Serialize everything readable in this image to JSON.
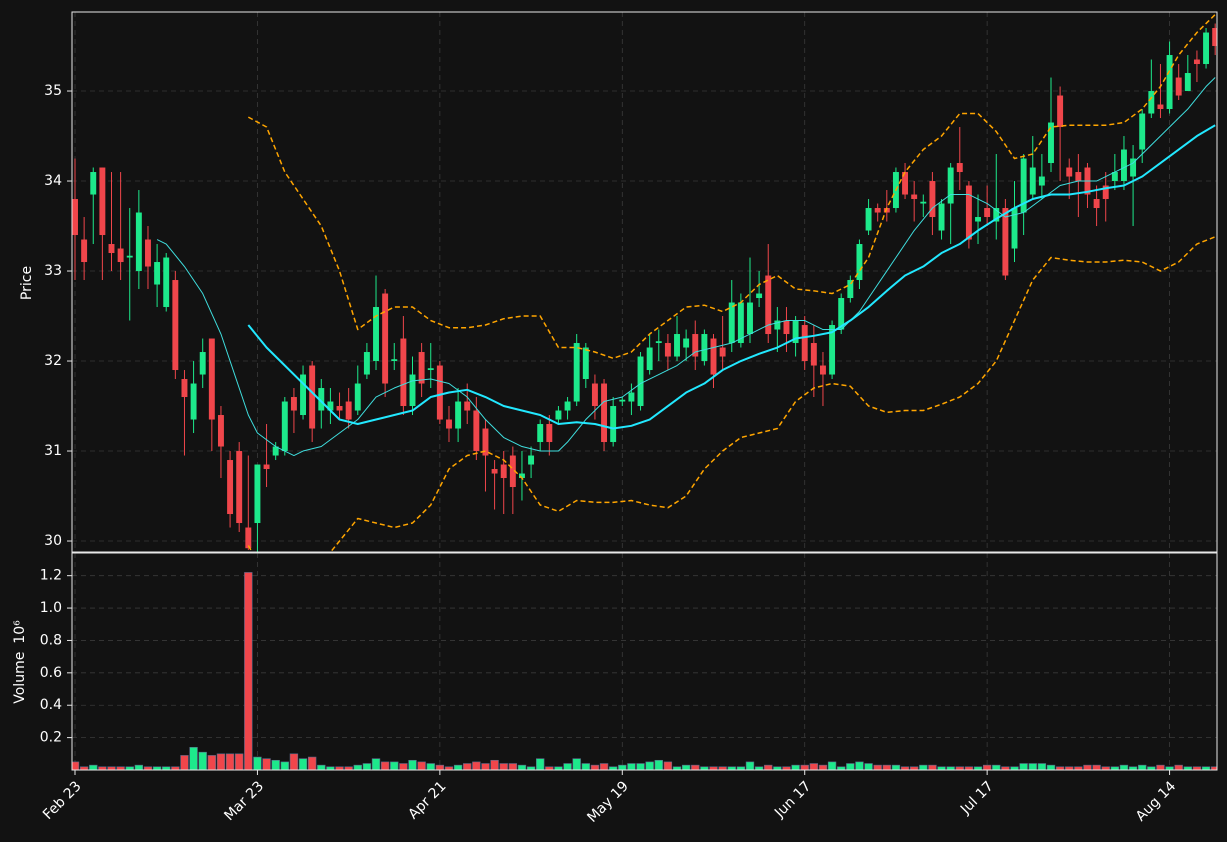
{
  "chart_data": {
    "type": "candlestick",
    "categories": [
      "Feb 23",
      null,
      null,
      null,
      null,
      null,
      null,
      null,
      null,
      null,
      null,
      null,
      null,
      null,
      null,
      null,
      null,
      null,
      null,
      null,
      "Mar 23",
      null,
      null,
      null,
      null,
      null,
      null,
      null,
      null,
      null,
      null,
      null,
      null,
      null,
      null,
      null,
      null,
      null,
      null,
      null,
      "Apr 21",
      null,
      null,
      null,
      null,
      null,
      null,
      null,
      null,
      null,
      null,
      null,
      null,
      null,
      null,
      null,
      null,
      null,
      null,
      null,
      "May 19",
      null,
      null,
      null,
      null,
      null,
      null,
      null,
      null,
      null,
      null,
      null,
      null,
      null,
      null,
      null,
      null,
      null,
      null,
      null,
      "Jun 17",
      null,
      null,
      null,
      null,
      null,
      null,
      null,
      null,
      null,
      null,
      null,
      null,
      null,
      null,
      null,
      null,
      null,
      null,
      null,
      "Jul 17",
      null,
      null,
      null,
      null,
      null,
      null,
      null,
      null,
      null,
      null,
      null,
      null,
      null,
      null,
      null,
      null,
      null,
      null,
      null,
      "Aug 14",
      null,
      null,
      null,
      null,
      null
    ],
    "xlim": [
      -0.33,
      125.2
    ],
    "open": [
      33.8,
      33.35,
      33.85,
      34.15,
      33.3,
      33.25,
      33.15,
      33.0,
      33.35,
      32.85,
      32.6,
      32.9,
      31.8,
      31.35,
      31.85,
      32.25,
      31.4,
      30.9,
      31.0,
      30.15,
      30.2,
      30.85,
      30.95,
      31.0,
      31.6,
      31.4,
      31.95,
      31.45,
      31.45,
      31.5,
      31.55,
      31.45,
      31.85,
      32.0,
      32.75,
      32.0,
      32.25,
      31.5,
      32.1,
      31.9,
      31.95,
      31.35,
      31.25,
      31.55,
      31.45,
      31.25,
      30.8,
      30.85,
      30.95,
      30.7,
      30.85,
      31.1,
      31.3,
      31.35,
      31.45,
      31.55,
      31.8,
      31.75,
      31.75,
      31.1,
      31.55,
      31.55,
      31.5,
      31.9,
      32.2,
      32.2,
      32.05,
      32.15,
      32.3,
      32.0,
      32.25,
      32.15,
      32.2,
      32.2,
      32.3,
      32.7,
      32.95,
      32.35,
      32.45,
      32.2,
      32.4,
      32.2,
      31.95,
      31.85,
      32.35,
      32.7,
      32.9,
      33.45,
      33.7,
      33.7,
      33.7,
      34.1,
      33.85,
      33.75,
      34.0,
      33.45,
      33.75,
      34.2,
      33.95,
      33.55,
      33.7,
      33.55,
      33.7,
      33.25,
      33.65,
      33.85,
      33.95,
      34.2,
      34.95,
      34.15,
      34.1,
      34.15,
      33.8,
      33.95,
      34.0,
      34.0,
      34.05,
      34.35,
      34.75,
      34.85,
      34.8,
      35.15,
      35.0,
      35.35,
      35.3,
      35.7
    ],
    "high": [
      34.25,
      33.6,
      34.15,
      34.15,
      34.1,
      34.1,
      33.7,
      33.9,
      33.5,
      33.3,
      33.2,
      33.0,
      31.9,
      32.0,
      32.25,
      32.25,
      31.5,
      31.0,
      31.1,
      30.95,
      30.85,
      31.3,
      31.1,
      31.6,
      31.7,
      31.95,
      32.0,
      31.8,
      31.7,
      31.65,
      31.7,
      31.95,
      32.2,
      32.95,
      32.8,
      32.2,
      32.5,
      32.05,
      32.2,
      32.2,
      32.0,
      31.5,
      31.7,
      31.75,
      31.6,
      31.35,
      30.9,
      31.0,
      31.05,
      31.0,
      31.05,
      31.35,
      31.4,
      31.5,
      31.6,
      32.3,
      32.2,
      31.85,
      31.8,
      31.6,
      31.6,
      31.75,
      32.1,
      32.3,
      32.35,
      32.3,
      32.5,
      32.35,
      32.45,
      32.35,
      32.3,
      32.5,
      32.9,
      32.75,
      33.15,
      33.0,
      33.3,
      32.6,
      32.6,
      32.5,
      32.5,
      32.4,
      32.1,
      32.45,
      32.75,
      32.95,
      33.35,
      33.8,
      33.75,
      33.9,
      34.15,
      34.2,
      34.0,
      33.85,
      34.1,
      33.8,
      34.2,
      34.6,
      34.0,
      33.85,
      33.95,
      34.3,
      33.8,
      34.0,
      34.3,
      34.5,
      34.3,
      35.15,
      35.05,
      34.25,
      34.3,
      34.2,
      33.95,
      34.1,
      34.3,
      34.5,
      34.4,
      34.8,
      35.35,
      35.3,
      35.55,
      35.3,
      35.4,
      35.45,
      35.7,
      35.75
    ],
    "low": [
      32.9,
      32.9,
      33.3,
      32.9,
      33.0,
      32.9,
      32.45,
      32.8,
      32.8,
      32.6,
      32.55,
      31.8,
      30.95,
      31.2,
      31.7,
      31.0,
      30.7,
      30.15,
      30.1,
      29.9,
      29.85,
      30.6,
      30.9,
      30.95,
      31.2,
      31.35,
      31.1,
      31.25,
      31.3,
      31.35,
      31.25,
      31.4,
      31.8,
      31.9,
      31.6,
      31.9,
      31.4,
      31.4,
      31.6,
      31.7,
      31.3,
      31.1,
      31.1,
      31.3,
      30.9,
      30.55,
      30.35,
      30.3,
      30.3,
      30.45,
      30.7,
      31.0,
      30.95,
      31.3,
      31.35,
      31.5,
      31.7,
      31.35,
      31.0,
      31.05,
      31.5,
      31.4,
      31.45,
      31.85,
      32.0,
      31.9,
      32.0,
      32.0,
      31.9,
      31.95,
      31.7,
      31.9,
      32.1,
      32.15,
      32.2,
      32.6,
      32.2,
      32.1,
      32.1,
      32.05,
      31.9,
      31.6,
      31.5,
      31.8,
      32.3,
      32.65,
      32.8,
      33.4,
      33.55,
      33.55,
      33.65,
      33.8,
      33.55,
      33.6,
      33.4,
      33.35,
      33.3,
      33.9,
      33.25,
      33.3,
      33.5,
      33.35,
      32.9,
      33.1,
      33.4,
      33.8,
      33.8,
      34.1,
      34.0,
      33.8,
      33.6,
      33.7,
      33.5,
      33.55,
      33.9,
      33.9,
      33.5,
      34.2,
      34.7,
      34.7,
      34.75,
      34.9,
      35.0,
      35.1,
      35.25,
      35.4
    ],
    "close": [
      33.4,
      33.1,
      34.1,
      33.4,
      33.2,
      33.1,
      33.17,
      33.65,
      33.05,
      33.1,
      33.15,
      31.9,
      31.6,
      31.75,
      32.1,
      31.35,
      31.05,
      30.3,
      30.2,
      29.92,
      30.85,
      30.8,
      31.05,
      31.55,
      31.45,
      31.85,
      31.25,
      31.7,
      31.55,
      31.45,
      31.35,
      31.75,
      32.1,
      32.6,
      31.75,
      32.02,
      31.5,
      31.85,
      31.75,
      31.92,
      31.35,
      31.25,
      31.55,
      31.45,
      31.0,
      30.95,
      30.75,
      30.7,
      30.6,
      30.75,
      30.95,
      31.3,
      31.1,
      31.45,
      31.55,
      32.2,
      32.15,
      31.5,
      31.1,
      31.5,
      31.57,
      31.65,
      32.05,
      32.15,
      32.22,
      32.05,
      32.3,
      32.25,
      32.05,
      32.3,
      31.85,
      32.05,
      32.65,
      32.65,
      32.65,
      32.75,
      32.3,
      32.45,
      32.3,
      32.45,
      32.0,
      31.95,
      31.85,
      32.4,
      32.7,
      32.9,
      33.3,
      33.7,
      33.65,
      33.65,
      34.1,
      33.85,
      33.8,
      33.77,
      33.6,
      33.75,
      34.15,
      34.1,
      33.35,
      33.6,
      33.6,
      33.7,
      32.95,
      33.7,
      34.25,
      34.15,
      34.05,
      34.65,
      34.6,
      34.05,
      34.0,
      33.85,
      33.7,
      33.8,
      34.1,
      34.35,
      34.25,
      34.75,
      35.0,
      34.8,
      35.4,
      34.95,
      35.2,
      35.3,
      35.65,
      35.5
    ],
    "up_color": "#1de98b",
    "down_color": "#f0464b",
    "ylabel": "Price",
    "ylim": [
      29.878,
      35.878
    ],
    "yticks": [
      30,
      31,
      32,
      33,
      34,
      35
    ],
    "grid": true,
    "overlays": [
      {
        "color": "#3fdede",
        "width": 1,
        "dashed": false,
        "x": [
          9,
          10,
          12,
          14,
          16,
          18,
          19,
          20,
          22,
          24,
          25,
          27,
          29,
          31,
          33,
          35,
          37,
          39,
          41,
          43,
          45,
          47,
          49,
          51,
          53,
          54,
          56,
          58,
          60,
          62,
          64,
          66,
          68,
          70,
          72,
          74,
          76,
          78,
          80,
          82,
          84,
          86,
          88,
          90,
          92,
          94,
          96,
          98,
          100,
          102,
          104,
          106,
          108,
          110,
          112,
          114,
          116,
          118,
          120,
          122,
          124,
          125
        ],
        "values": [
          33.35,
          33.3,
          33.05,
          32.75,
          32.3,
          31.7,
          31.4,
          31.2,
          31.05,
          30.95,
          31.0,
          31.05,
          31.2,
          31.35,
          31.6,
          31.7,
          31.78,
          31.8,
          31.75,
          31.6,
          31.35,
          31.15,
          31.05,
          31.0,
          31.0,
          31.1,
          31.35,
          31.55,
          31.6,
          31.75,
          31.85,
          31.95,
          32.1,
          32.15,
          32.2,
          32.3,
          32.4,
          32.45,
          32.45,
          32.35,
          32.35,
          32.55,
          32.85,
          33.15,
          33.45,
          33.7,
          33.85,
          33.85,
          33.75,
          33.6,
          33.65,
          33.8,
          33.95,
          34.0,
          34.0,
          34.1,
          34.2,
          34.4,
          34.6,
          34.8,
          35.05,
          35.15
        ]
      },
      {
        "color": "#22e8ff",
        "width": 2,
        "dashed": false,
        "x": [
          19,
          21,
          23,
          25,
          27,
          29,
          31,
          33,
          35,
          37,
          39,
          41,
          43,
          45,
          47,
          49,
          51,
          53,
          55,
          57,
          59,
          61,
          63,
          65,
          67,
          69,
          71,
          73,
          75,
          77,
          79,
          81,
          83,
          85,
          87,
          89,
          91,
          93,
          95,
          97,
          99,
          101,
          103,
          105,
          107,
          109,
          111,
          113,
          115,
          117,
          119,
          121,
          123,
          125
        ],
        "values": [
          32.4,
          32.15,
          31.95,
          31.75,
          31.55,
          31.35,
          31.3,
          31.35,
          31.4,
          31.45,
          31.6,
          31.65,
          31.68,
          31.6,
          31.5,
          31.45,
          31.4,
          31.3,
          31.32,
          31.3,
          31.25,
          31.28,
          31.35,
          31.5,
          31.65,
          31.75,
          31.9,
          32.0,
          32.08,
          32.15,
          32.25,
          32.28,
          32.32,
          32.45,
          32.6,
          32.78,
          32.95,
          33.05,
          33.2,
          33.3,
          33.45,
          33.58,
          33.7,
          33.8,
          33.85,
          33.85,
          33.88,
          33.92,
          33.95,
          34.05,
          34.2,
          34.35,
          34.5,
          34.62
        ]
      },
      {
        "color": "#ffa500",
        "width": 1.5,
        "dashed": true,
        "x": [
          19,
          21,
          23,
          25,
          27,
          29,
          31,
          33,
          35,
          37,
          39,
          41,
          43,
          45,
          47,
          49,
          51,
          53,
          55,
          57,
          59,
          61,
          63,
          65,
          67,
          69,
          71,
          73,
          75,
          77,
          79,
          81,
          83,
          85,
          87,
          89,
          91,
          93,
          95,
          97,
          99,
          101,
          103,
          105,
          107,
          109,
          111,
          113,
          115,
          117,
          119,
          121,
          123,
          125
        ],
        "values": [
          34.71,
          34.6,
          34.1,
          33.8,
          33.5,
          33.0,
          32.35,
          32.5,
          32.6,
          32.6,
          32.45,
          32.37,
          32.37,
          32.4,
          32.47,
          32.5,
          32.5,
          32.15,
          32.15,
          32.1,
          32.03,
          32.1,
          32.3,
          32.45,
          32.6,
          32.62,
          32.55,
          32.65,
          32.85,
          32.95,
          32.8,
          32.78,
          32.75,
          32.85,
          33.15,
          33.7,
          34.1,
          34.35,
          34.5,
          34.75,
          34.75,
          34.55,
          34.25,
          34.3,
          34.6,
          34.62,
          34.62,
          34.62,
          34.65,
          34.8,
          35.05,
          35.4,
          35.65,
          35.85
        ]
      },
      {
        "color": "#ffa500",
        "width": 1.5,
        "dashed": true,
        "x": [
          19,
          21,
          23,
          25,
          27,
          29,
          31,
          33,
          35,
          37,
          39,
          41,
          43,
          45,
          47,
          49,
          51,
          53,
          55,
          57,
          59,
          61,
          63,
          65,
          67,
          69,
          71,
          73,
          75,
          77,
          79,
          81,
          83,
          85,
          87,
          89,
          91,
          93,
          95,
          97,
          99,
          101,
          103,
          105,
          107,
          109,
          111,
          113,
          115,
          117,
          119,
          121,
          123,
          125
        ],
        "values": [
          29.95,
          29.6,
          29.4,
          29.5,
          29.75,
          30.0,
          30.25,
          30.2,
          30.15,
          30.2,
          30.4,
          30.8,
          30.95,
          31.0,
          30.9,
          30.7,
          30.4,
          30.33,
          30.45,
          30.43,
          30.43,
          30.45,
          30.4,
          30.37,
          30.5,
          30.8,
          31.0,
          31.15,
          31.2,
          31.25,
          31.55,
          31.7,
          31.75,
          31.72,
          31.5,
          31.43,
          31.45,
          31.45,
          31.52,
          31.6,
          31.75,
          32.0,
          32.45,
          32.9,
          33.15,
          33.12,
          33.1,
          33.1,
          33.12,
          33.1,
          33.0,
          33.1,
          33.3,
          33.38
        ]
      }
    ],
    "volume": {
      "ylabel": "Volume",
      "offset_label": "10⁶",
      "ylim": [
        0,
        1.34
      ],
      "yticks": [
        0.2,
        0.4,
        0.6,
        0.8,
        {
          "value": 1,
          "label": "1.0"
        },
        1.2
      ],
      "values": [
        0.05,
        0.02,
        0.03,
        0.02,
        0.02,
        0.02,
        0.02,
        0.03,
        0.02,
        0.02,
        0.02,
        0.02,
        0.09,
        0.14,
        0.11,
        0.09,
        0.1,
        0.1,
        0.1,
        1.22,
        0.08,
        0.07,
        0.06,
        0.05,
        0.1,
        0.07,
        0.08,
        0.03,
        0.02,
        0.02,
        0.02,
        0.03,
        0.04,
        0.07,
        0.05,
        0.05,
        0.04,
        0.06,
        0.05,
        0.04,
        0.03,
        0.02,
        0.03,
        0.04,
        0.05,
        0.04,
        0.06,
        0.04,
        0.04,
        0.03,
        0.02,
        0.07,
        0.02,
        0.02,
        0.04,
        0.07,
        0.04,
        0.03,
        0.04,
        0.02,
        0.03,
        0.04,
        0.04,
        0.05,
        0.06,
        0.05,
        0.02,
        0.03,
        0.03,
        0.02,
        0.02,
        0.02,
        0.02,
        0.02,
        0.05,
        0.02,
        0.03,
        0.02,
        0.02,
        0.03,
        0.03,
        0.04,
        0.03,
        0.05,
        0.02,
        0.04,
        0.05,
        0.04,
        0.03,
        0.03,
        0.03,
        0.02,
        0.02,
        0.03,
        0.03,
        0.02,
        0.02,
        0.02,
        0.02,
        0.02,
        0.03,
        0.03,
        0.02,
        0.02,
        0.04,
        0.04,
        0.04,
        0.03,
        0.02,
        0.02,
        0.02,
        0.03,
        0.03,
        0.02,
        0.02,
        0.03,
        0.02,
        0.03,
        0.02,
        0.03,
        0.02,
        0.03,
        0.02,
        0.02,
        0.02,
        0.02
      ]
    }
  }
}
